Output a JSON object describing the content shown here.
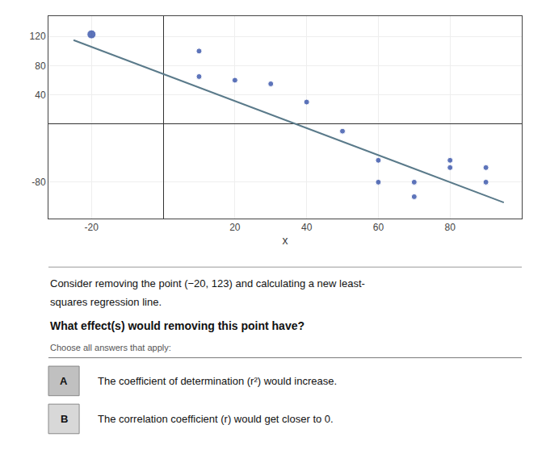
{
  "chart_data": {
    "type": "scatter",
    "series": [
      {
        "type": "scatter",
        "color": "#1a3a9e",
        "x": [
          -20,
          10,
          10,
          20,
          30,
          40,
          50,
          60,
          60,
          70,
          70,
          80,
          80,
          90,
          90
        ],
        "values": [
          123,
          100,
          65,
          60,
          55,
          30,
          -10,
          -50,
          -80,
          -80,
          -100,
          -60,
          -50,
          -60,
          -80
        ]
      },
      {
        "type": "line",
        "color": "#5a7a8a",
        "x": [
          -25,
          95
        ],
        "values": [
          115,
          -108
        ]
      }
    ],
    "x_label": "x",
    "xlim": [
      -32,
      100
    ],
    "ylim": [
      -130,
      148
    ],
    "xticks": [
      -20,
      20,
      40,
      60,
      80
    ],
    "yticks": [
      -80,
      40,
      80,
      120
    ],
    "grid": true,
    "notes": [
      "Consider removing the point (−20, 123) and calculating a new least-",
      "squares regression line."
    ],
    "question": "What effect(s) would removing this point have?",
    "instruction": "Choose all answers that apply:",
    "answers": [
      {
        "label": "A",
        "text": "The coefficient of determination (r²) would increase.",
        "color": "#c0c0c0"
      },
      {
        "label": "B",
        "text": "The correlation coefficient (r) would get closer to 0.",
        "color": "#d8d8d8"
      }
    ]
  }
}
